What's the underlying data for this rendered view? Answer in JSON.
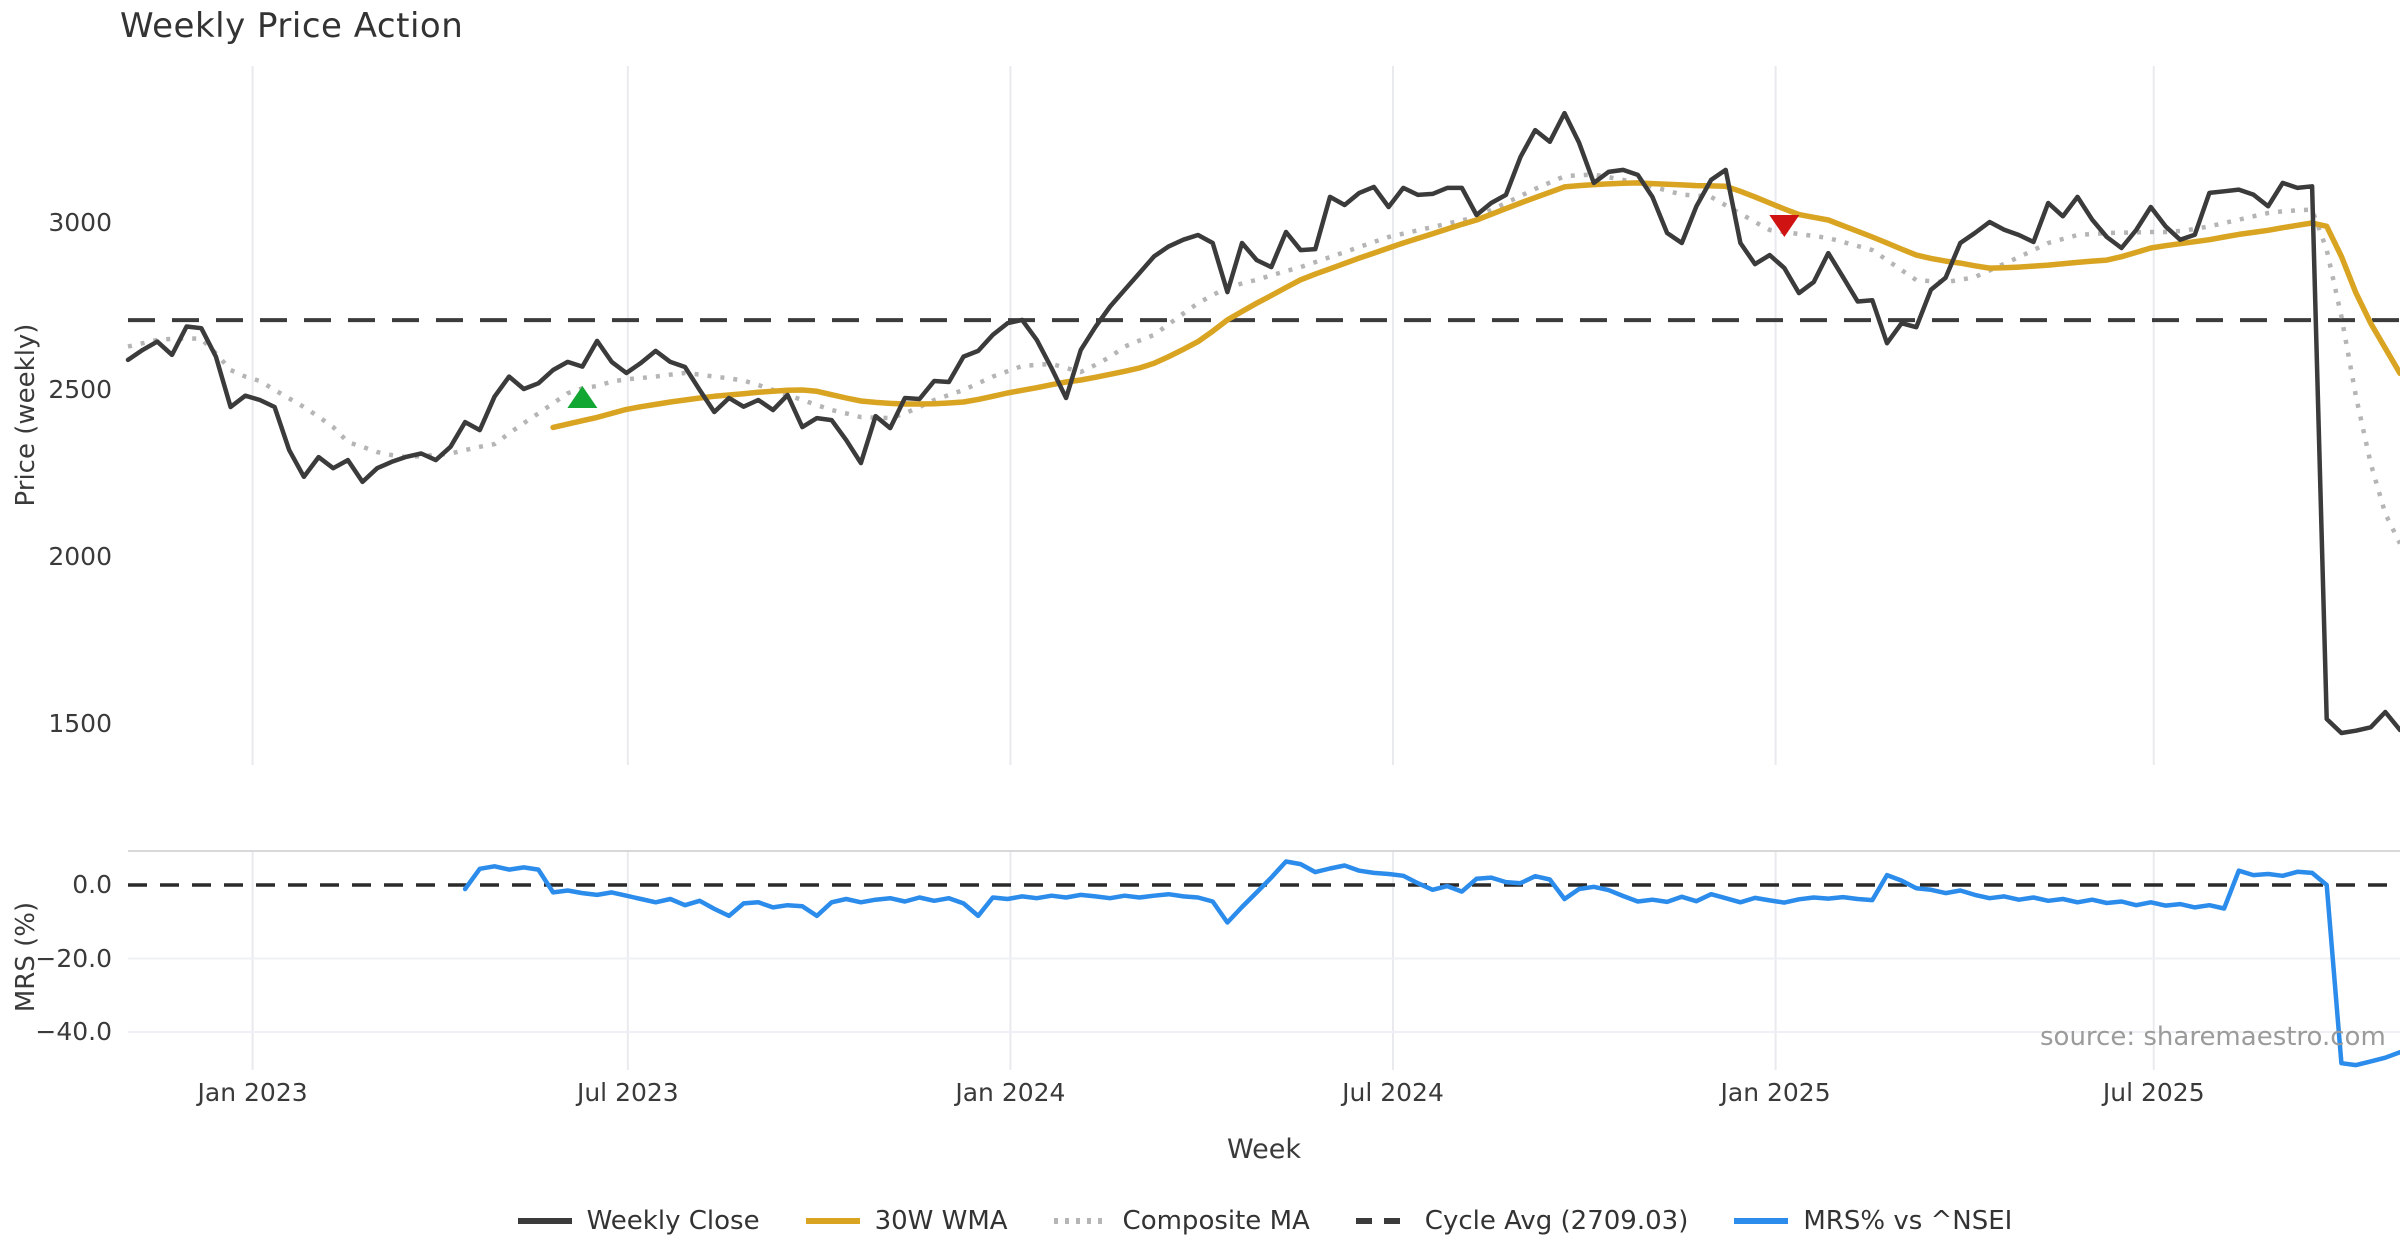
{
  "chart_data": {
    "type": "line",
    "title": "Weekly Price Action",
    "xlabel": "Week",
    "watermark": "source: sharemaestro.com",
    "x_axis": {
      "unit": "weekly",
      "n_points": 156,
      "ticks": [
        {
          "label": "Jan 2023",
          "week": 8.5
        },
        {
          "label": "Jul 2023",
          "week": 34.1
        },
        {
          "label": "Jan 2024",
          "week": 60.2
        },
        {
          "label": "Jul 2024",
          "week": 86.3
        },
        {
          "label": "Jan 2025",
          "week": 112.4
        },
        {
          "label": "Jul 2025",
          "week": 138.2
        }
      ]
    },
    "panels": [
      {
        "name": "price",
        "ylabel": "Price (weekly)",
        "ylim": [
          1377,
          3470
        ],
        "yticks": [
          {
            "label": "3000",
            "value": 3000
          },
          {
            "label": "2500",
            "value": 2500
          },
          {
            "label": "2000",
            "value": 2000
          },
          {
            "label": "1500",
            "value": 1500
          }
        ],
        "hline": {
          "name": "cycle-average",
          "value": 2709.03,
          "style": "dashed",
          "color": "#3b3b3b"
        }
      },
      {
        "name": "mrs",
        "ylabel": "MRS (%)",
        "ylim": [
          -50.5,
          9.3
        ],
        "yticks": [
          {
            "label": "0.0",
            "value": 0
          },
          {
            "label": "−20.0",
            "value": -20
          },
          {
            "label": "−40.0",
            "value": -40
          }
        ],
        "hline": {
          "name": "zero-line",
          "value": 0,
          "style": "dashed",
          "color": "#2a2a2a"
        },
        "gridline_values": [
          -20,
          -40
        ]
      }
    ],
    "series": [
      {
        "name": "Weekly Close",
        "panel": "price",
        "color": "#3b3b3b",
        "style": "solid",
        "width": 4.5,
        "values": [
          2590,
          2620,
          2645,
          2605,
          2690,
          2685,
          2600,
          2449,
          2483,
          2470,
          2449,
          2320,
          2240,
          2299,
          2266,
          2290,
          2225,
          2266,
          2285,
          2300,
          2310,
          2290,
          2330,
          2404,
          2380,
          2480,
          2540,
          2503,
          2520,
          2560,
          2584,
          2570,
          2647,
          2584,
          2551,
          2581,
          2617,
          2584,
          2569,
          2500,
          2434,
          2476,
          2450,
          2470,
          2440,
          2485,
          2389,
          2416,
          2410,
          2350,
          2281,
          2422,
          2386,
          2476,
          2473,
          2527,
          2524,
          2600,
          2617,
          2665,
          2700,
          2710,
          2650,
          2566,
          2476,
          2620,
          2689,
          2750,
          2800,
          2850,
          2900,
          2930,
          2950,
          2964,
          2940,
          2793,
          2940,
          2889,
          2868,
          2973,
          2919,
          2922,
          3078,
          3054,
          3090,
          3108,
          3048,
          3105,
          3084,
          3087,
          3105,
          3105,
          3024,
          3060,
          3084,
          3198,
          3278,
          3243,
          3329,
          3240,
          3120,
          3153,
          3159,
          3144,
          3078,
          2970,
          2940,
          3050,
          3129,
          3159,
          2940,
          2877,
          2904,
          2865,
          2790,
          2823,
          2910,
          2838,
          2765,
          2769,
          2640,
          2700,
          2688,
          2800,
          2836,
          2940,
          2970,
          3003,
          2980,
          2964,
          2943,
          3060,
          3020,
          3078,
          3010,
          2958,
          2925,
          2979,
          3048,
          2990,
          2950,
          2965,
          3090,
          3095,
          3100,
          3085,
          3050,
          3120,
          3105,
          3110,
          1515,
          1473,
          1480,
          1490,
          1536,
          1482
        ]
      },
      {
        "name": "30W WMA",
        "panel": "price",
        "color": "#d9a421",
        "style": "solid",
        "width": 5.5,
        "values": [
          null,
          null,
          null,
          null,
          null,
          null,
          null,
          null,
          null,
          null,
          null,
          null,
          null,
          null,
          null,
          null,
          null,
          null,
          null,
          null,
          null,
          null,
          null,
          null,
          null,
          null,
          null,
          null,
          null,
          2388,
          2398,
          2408,
          2418,
          2430,
          2442,
          2450,
          2457,
          2464,
          2470,
          2476,
          2481,
          2485,
          2489,
          2493,
          2496,
          2499,
          2500,
          2496,
          2486,
          2476,
          2467,
          2463,
          2460,
          2458,
          2458,
          2459,
          2461,
          2464,
          2472,
          2481,
          2491,
          2499,
          2507,
          2516,
          2524,
          2530,
          2538,
          2547,
          2556,
          2566,
          2580,
          2600,
          2622,
          2645,
          2676,
          2710,
          2735,
          2760,
          2783,
          2807,
          2830,
          2847,
          2863,
          2879,
          2895,
          2910,
          2925,
          2940,
          2954,
          2968,
          2982,
          2996,
          3009,
          3026,
          3043,
          3060,
          3076,
          3092,
          3108,
          3112,
          3115,
          3117,
          3119,
          3120,
          3118,
          3116,
          3114,
          3112,
          3111,
          3110,
          3095,
          3078,
          3060,
          3042,
          3025,
          3017,
          3009,
          2992,
          2975,
          2958,
          2940,
          2922,
          2904,
          2894,
          2886,
          2880,
          2872,
          2865,
          2866,
          2868,
          2871,
          2874,
          2878,
          2882,
          2886,
          2889,
          2899,
          2912,
          2925,
          2932,
          2938,
          2944,
          2950,
          2958,
          2966,
          2972,
          2978,
          2986,
          2993,
          3000,
          2990,
          2900,
          2790,
          2700,
          2625,
          2550
        ]
      },
      {
        "name": "Composite MA",
        "panel": "price",
        "color": "#b5b5b5",
        "style": "dotted",
        "width": 4.5,
        "values": [
          2630,
          2640,
          2650,
          2653,
          2655,
          2653,
          2610,
          2560,
          2540,
          2527,
          2500,
          2475,
          2449,
          2420,
          2389,
          2344,
          2330,
          2314,
          2305,
          2299,
          2302,
          2305,
          2310,
          2320,
          2330,
          2338,
          2370,
          2401,
          2430,
          2460,
          2490,
          2505,
          2512,
          2525,
          2532,
          2536,
          2540,
          2546,
          2551,
          2546,
          2540,
          2535,
          2528,
          2515,
          2500,
          2485,
          2470,
          2455,
          2440,
          2430,
          2419,
          2417,
          2416,
          2430,
          2449,
          2470,
          2485,
          2500,
          2520,
          2540,
          2556,
          2572,
          2575,
          2578,
          2566,
          2554,
          2575,
          2599,
          2630,
          2648,
          2665,
          2697,
          2729,
          2760,
          2784,
          2807,
          2819,
          2830,
          2843,
          2856,
          2868,
          2883,
          2898,
          2913,
          2928,
          2943,
          2958,
          2968,
          2978,
          2988,
          2998,
          3008,
          3018,
          3039,
          3060,
          3081,
          3102,
          3121,
          3140,
          3143,
          3145,
          3137,
          3129,
          3120,
          3109,
          3097,
          3085,
          3082,
          3078,
          3053,
          3028,
          3003,
          2979,
          2973,
          2967,
          2961,
          2955,
          2943,
          2931,
          2919,
          2889,
          2859,
          2829,
          2826,
          2823,
          2830,
          2838,
          2858,
          2878,
          2898,
          2919,
          2940,
          2952,
          2964,
          2967,
          2970,
          2971,
          2972,
          2973,
          2973,
          2976,
          2982,
          2990,
          3000,
          3010,
          3020,
          3030,
          3035,
          3038,
          3040,
          2920,
          2720,
          2480,
          2280,
          2130,
          2040
        ]
      },
      {
        "name": "MRS% vs ^NSEI",
        "panel": "mrs",
        "color": "#2b8ceb",
        "style": "solid",
        "width": 4.5,
        "values": [
          null,
          null,
          null,
          null,
          null,
          null,
          null,
          null,
          null,
          null,
          null,
          null,
          null,
          null,
          null,
          null,
          null,
          null,
          null,
          null,
          null,
          null,
          null,
          -1.1,
          4.4,
          5.1,
          4.2,
          4.8,
          4.2,
          -2.0,
          -1.5,
          -2.2,
          -2.7,
          -2.0,
          -2.9,
          -3.8,
          -4.7,
          -3.8,
          -5.5,
          -4.3,
          -6.5,
          -8.4,
          -5.0,
          -4.7,
          -6.1,
          -5.5,
          -5.8,
          -8.4,
          -4.7,
          -3.8,
          -4.7,
          -4.0,
          -3.6,
          -4.5,
          -3.4,
          -4.3,
          -3.6,
          -5.0,
          -8.4,
          -3.4,
          -3.8,
          -3.1,
          -3.6,
          -2.9,
          -3.4,
          -2.7,
          -3.1,
          -3.6,
          -2.9,
          -3.4,
          -2.9,
          -2.5,
          -3.1,
          -3.4,
          -4.5,
          -10.2,
          -6.0,
          -2.0,
          2.0,
          6.4,
          5.7,
          3.5,
          4.5,
          5.3,
          3.9,
          3.3,
          3.0,
          2.5,
          0.5,
          -1.3,
          -0.3,
          -1.8,
          1.7,
          2.0,
          0.8,
          0.5,
          2.4,
          1.5,
          -3.8,
          -1.1,
          -0.5,
          -1.4,
          -3.0,
          -4.5,
          -4.0,
          -4.6,
          -3.2,
          -4.4,
          -2.5,
          -3.6,
          -4.7,
          -3.5,
          -4.2,
          -4.8,
          -3.9,
          -3.4,
          -3.7,
          -3.3,
          -3.8,
          -4.1,
          2.7,
          1.2,
          -0.9,
          -1.3,
          -2.2,
          -1.5,
          -2.7,
          -3.6,
          -3.1,
          -4.0,
          -3.4,
          -4.3,
          -3.8,
          -4.7,
          -4.0,
          -4.9,
          -4.5,
          -5.5,
          -4.7,
          -5.6,
          -5.2,
          -6.1,
          -5.5,
          -6.4,
          3.9,
          2.7,
          3.0,
          2.5,
          3.6,
          3.3,
          0.0,
          -48.5,
          -49.0,
          -48.0,
          -47.0,
          -45.5
        ]
      }
    ],
    "markers": [
      {
        "type": "buy-signal",
        "shape": "triangle-up",
        "color": "#12a633",
        "week": 31,
        "price": 2479
      },
      {
        "type": "sell-signal",
        "shape": "triangle-down",
        "color": "#cf1212",
        "week": 113,
        "price": 2991
      }
    ],
    "legend": [
      {
        "label": "Weekly Close",
        "color": "#3b3b3b",
        "style": "solid"
      },
      {
        "label": "30W WMA",
        "color": "#d9a421",
        "style": "solid"
      },
      {
        "label": "Composite MA",
        "color": "#b5b5b5",
        "style": "dotted"
      },
      {
        "label": "Cycle Avg (2709.03)",
        "color": "#3b3b3b",
        "style": "dashed"
      },
      {
        "label": "MRS% vs ^NSEI",
        "color": "#2b8ceb",
        "style": "solid"
      }
    ],
    "style": {
      "grid_color": "#e9eaee",
      "mrs_grid_color": "#eef0f5",
      "panel_top_spine_color": "#d8d8d8",
      "text_color": "#3a3a3a",
      "background": "#ffffff"
    }
  }
}
